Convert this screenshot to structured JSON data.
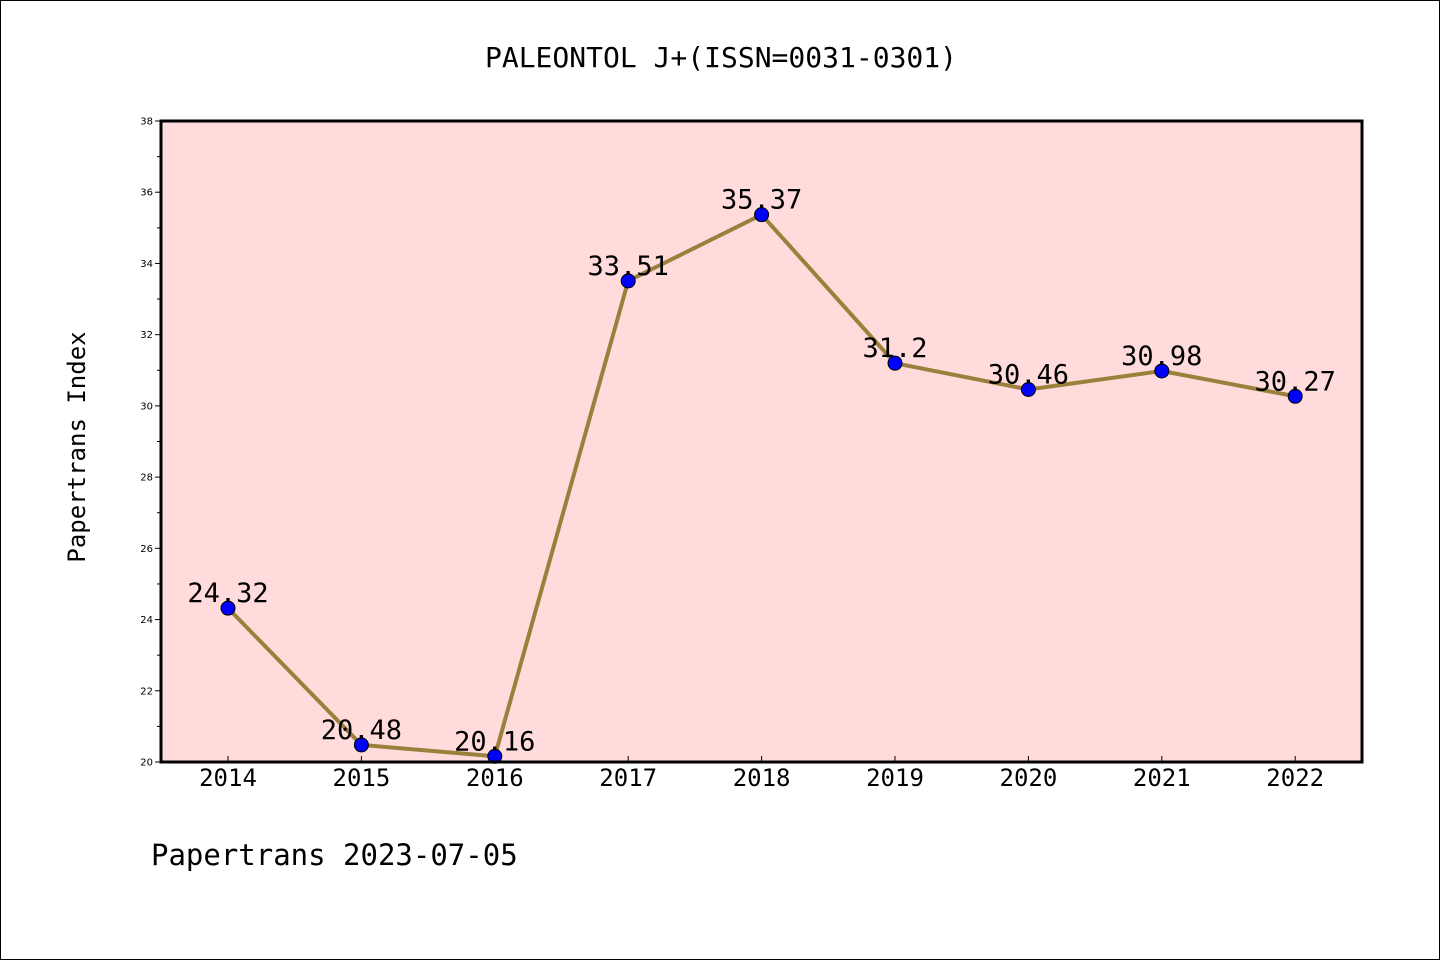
{
  "footer": {
    "caption": "Papertrans 2023-07-05"
  },
  "colors": {
    "plot_background": "#ffdcdb",
    "line": "#9b803c",
    "marker": "#0000ff",
    "axis": "#000000"
  },
  "chart_data": {
    "type": "line",
    "title": "PALEONTOL J+(ISSN=0031-0301)",
    "xlabel": "",
    "ylabel": "Papertrans Index",
    "categories": [
      "2014",
      "2015",
      "2016",
      "2017",
      "2018",
      "2019",
      "2020",
      "2021",
      "2022"
    ],
    "series": [
      {
        "values": [
          24.32,
          20.48,
          20.16,
          33.51,
          35.37,
          31.2,
          30.46,
          30.98,
          30.27
        ],
        "labels": [
          "24.32",
          "20.48",
          "20.16",
          "33.51",
          "35.37",
          "31.2",
          "30.46",
          "30.98",
          "30.27"
        ]
      }
    ],
    "ylim": [
      20,
      38
    ],
    "yticks": [
      "20",
      "22",
      "24",
      "26",
      "28",
      "30",
      "32",
      "34",
      "36",
      "38"
    ],
    "grid": false,
    "legend": "none"
  }
}
